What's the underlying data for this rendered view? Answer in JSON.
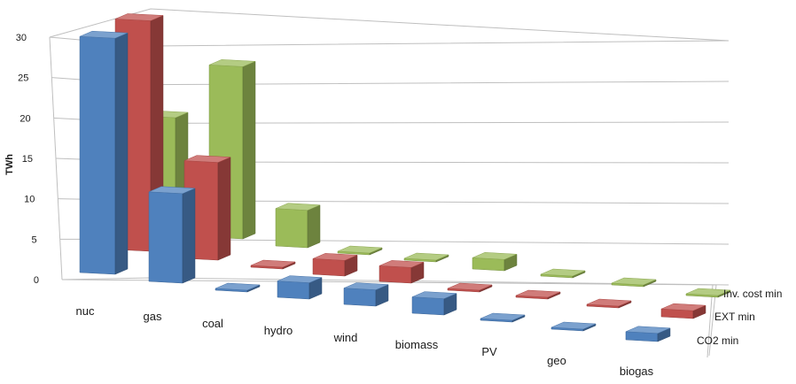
{
  "chart_data": {
    "type": "bar",
    "subtype": "3d-column",
    "title": "",
    "ylabel": "TWh",
    "xlabel": "",
    "ylim": [
      0,
      30
    ],
    "yticks": [
      "0",
      "5",
      "10",
      "15",
      "20",
      "25",
      "30"
    ],
    "grid": true,
    "categories": [
      "nuc",
      "gas",
      "coal",
      "hydro",
      "wind",
      "biomass",
      "PV",
      "geo",
      "biogas"
    ],
    "series": [
      {
        "name": "CO2 min",
        "color": "#4f81bd",
        "values": [
          29,
          11,
          0,
          2,
          2,
          2,
          0,
          0,
          1
        ]
      },
      {
        "name": "EXT min",
        "color": "#c0504d",
        "values": [
          29.5,
          12.5,
          0,
          2,
          2,
          0,
          0,
          0,
          1
        ]
      },
      {
        "name": "Inv. cost min",
        "color": "#9bbb59",
        "values": [
          15,
          23,
          5,
          0,
          0,
          1.5,
          0,
          0,
          0
        ]
      }
    ]
  }
}
